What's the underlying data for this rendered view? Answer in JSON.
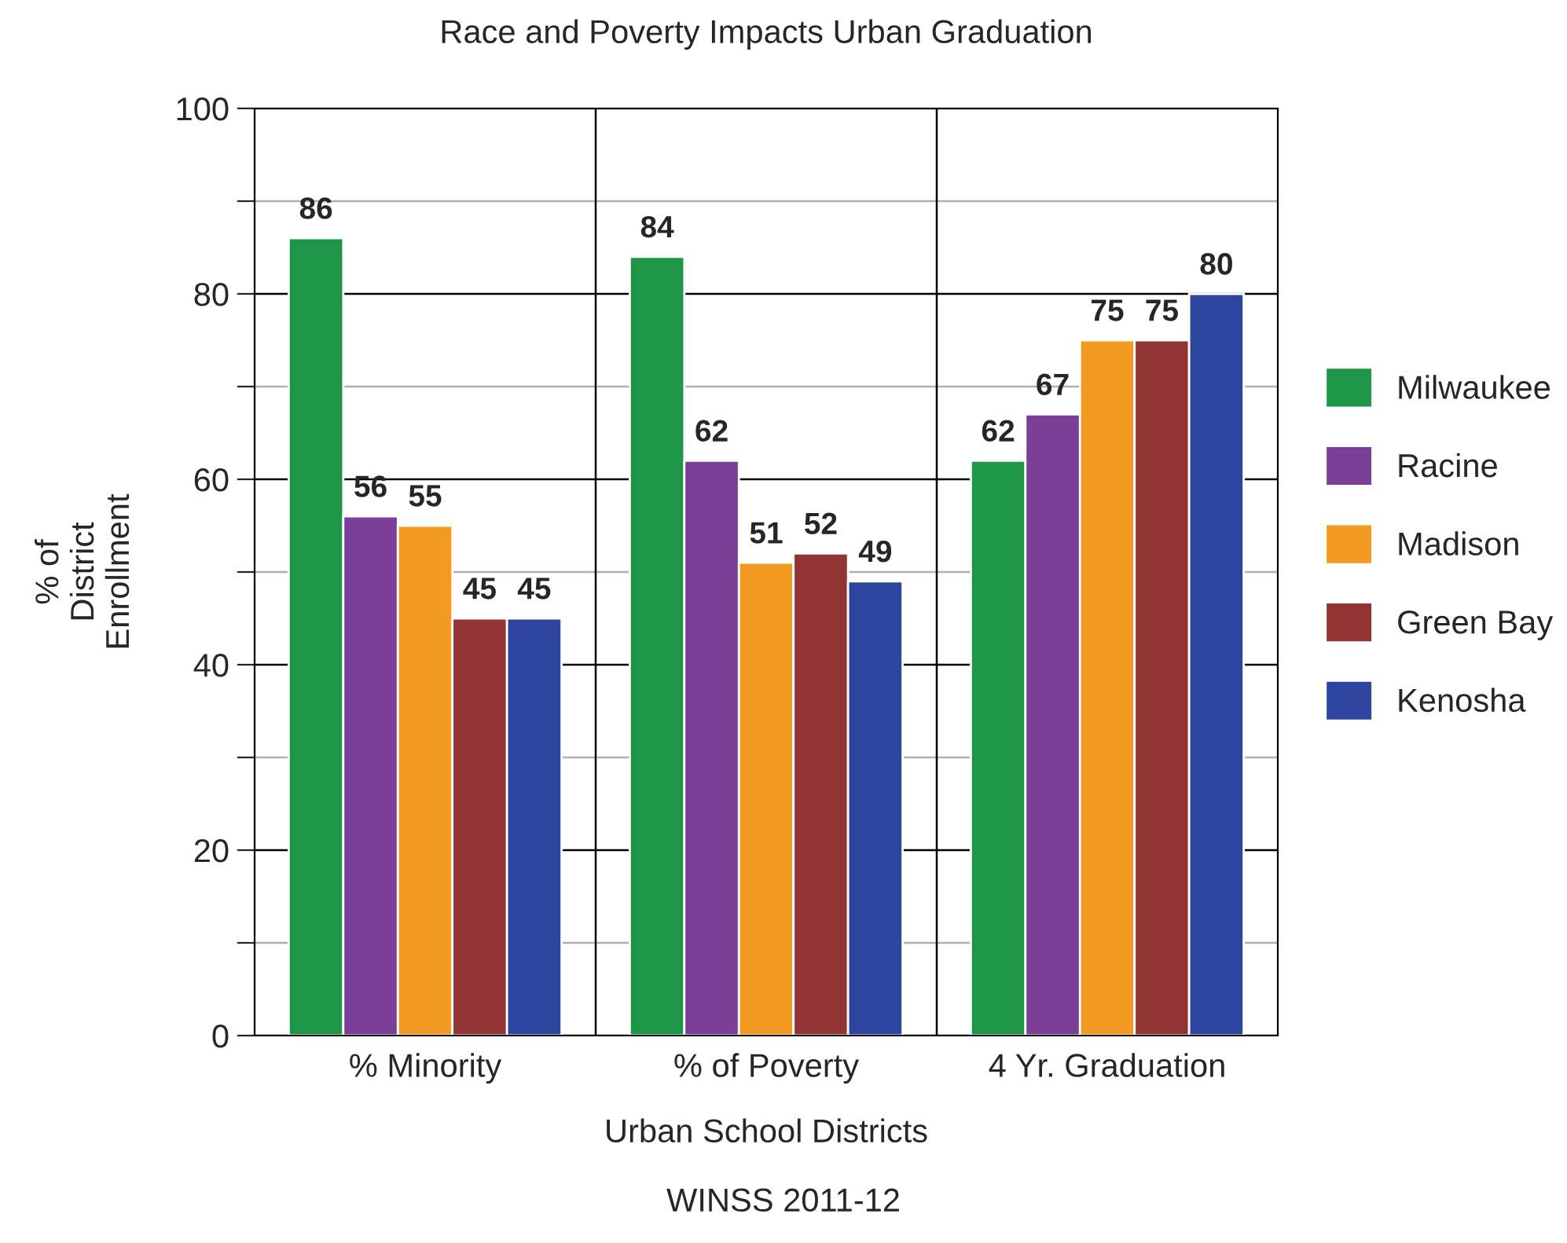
{
  "chart_data": {
    "type": "bar",
    "title": "Race and Poverty Impacts Urban Graduation",
    "xlabel": "Urban School Districts",
    "ylabel": "% of\nDistrict\nEnrollment",
    "categories": [
      "% Minority",
      "% of Poverty",
      "4 Yr. Graduation"
    ],
    "series": [
      {
        "name": "Milwaukee",
        "color": "#1e9648",
        "values": [
          86,
          84,
          62
        ]
      },
      {
        "name": "Racine",
        "color": "#7b3f98",
        "values": [
          56,
          62,
          67
        ]
      },
      {
        "name": "Madison",
        "color": "#f39a22",
        "values": [
          55,
          51,
          75
        ]
      },
      {
        "name": "Green Bay",
        "color": "#933434",
        "values": [
          45,
          52,
          75
        ]
      },
      {
        "name": "Kenosha",
        "color": "#2e45a0",
        "values": [
          45,
          49,
          80
        ]
      }
    ],
    "ylim": [
      0,
      100
    ],
    "yticks": [
      0,
      {
        "value": 10,
        "label": null
      },
      20,
      {
        "value": 30,
        "label": null
      },
      40,
      {
        "value": 50,
        "label": null
      },
      60,
      {
        "value": 70,
        "label": null
      },
      80,
      {
        "value": 90,
        "label": null
      },
      100
    ],
    "grid": true,
    "legend": "right",
    "data_labels": true,
    "annotations": [
      "WINSS 2011-12"
    ]
  }
}
